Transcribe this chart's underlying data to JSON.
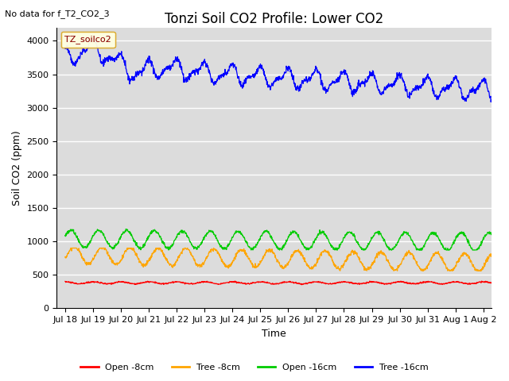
{
  "title": "Tonzi Soil CO2 Profile: Lower CO2",
  "subtitle": "No data for f_T2_CO2_3",
  "ylabel": "Soil CO2 (ppm)",
  "xlabel": "Time",
  "legend_label": "TZ_soilco2",
  "ylim": [
    0,
    4200
  ],
  "yticks": [
    0,
    500,
    1000,
    1500,
    2000,
    2500,
    3000,
    3500,
    4000
  ],
  "series_colors": {
    "open_8cm": "#ff0000",
    "tree_8cm": "#ffa500",
    "open_16cm": "#00cc00",
    "tree_16cm": "#0000ff"
  },
  "legend_entries": [
    "Open -8cm",
    "Tree -8cm",
    "Open -16cm",
    "Tree -16cm"
  ],
  "legend_colors": [
    "#ff0000",
    "#ffa500",
    "#00cc00",
    "#0000ff"
  ],
  "plot_bg_color": "#dcdcdc",
  "fig_bg_color": "#ffffff",
  "n_days": 16,
  "xtick_labels": [
    "Jul 18",
    "Jul 19",
    "Jul 20",
    "Jul 21",
    "Jul 22",
    "Jul 23",
    "Jul 24",
    "Jul 25",
    "Jul 26",
    "Jul 27",
    "Jul 28",
    "Jul 29",
    "Jul 30",
    "Jul 31",
    "Aug 1",
    "Aug 2"
  ],
  "title_fontsize": 12,
  "axis_fontsize": 9,
  "tick_fontsize": 8
}
